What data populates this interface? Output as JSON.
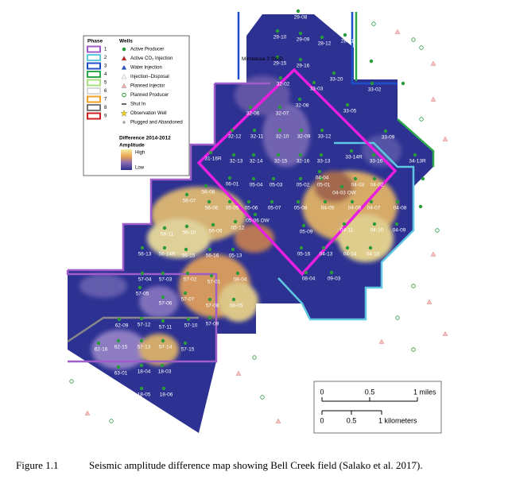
{
  "legend": {
    "phase_title": "Phase",
    "phases": [
      "1",
      "2",
      "3",
      "4",
      "5",
      "6",
      "7",
      "8",
      "9"
    ],
    "wells_title": "Wells",
    "wells": [
      "Active Producer",
      "Active CO₂ Injection",
      "Water Injection",
      "Injection–Disposal",
      "Planned Injector",
      "Planned Producer",
      "Shut In",
      "Observation Well",
      "Plugged and Abandoned"
    ],
    "difference_title": "Difference 2014-2012",
    "amplitude_title": "Amplitude",
    "high": "High",
    "low": "Low"
  },
  "map": {
    "swd": "Minnelusa 3 SWD",
    "wells": [
      "29-08",
      "29-10",
      "29-09",
      "28-12",
      "28-11",
      "28-15",
      "29-15",
      "29-16",
      "32-02",
      "33-20",
      "33-03",
      "33-02",
      "33-01",
      "32-06",
      "32-07",
      "32-08",
      "33-05",
      "32-12",
      "32-11",
      "32-10",
      "32-09",
      "33-12",
      "33-09",
      "31-16R",
      "32-13",
      "32-14",
      "32-15",
      "32-16",
      "33-13",
      "33-14R",
      "33-16",
      "34-13R",
      "06-01",
      "05-04",
      "05-03",
      "05-02",
      "05-01",
      "04-04",
      "04-03",
      "04-02",
      "03-04",
      "56-08",
      "56-07",
      "56-06",
      "05-05",
      "05-06",
      "05-07",
      "05-08",
      "04-05",
      "04-06",
      "04-07",
      "04-08",
      "03-05",
      "05-06 OW",
      "04-03 OW",
      "56-11",
      "56-10",
      "56-09",
      "05-12",
      "05-09",
      "04-11",
      "04-10",
      "04-09",
      "56-13",
      "56-14R",
      "56-15",
      "56-16",
      "05-13",
      "05-16",
      "04-13",
      "04-14",
      "04-15",
      "57-04",
      "57-03",
      "57-02",
      "57-01",
      "08-04",
      "08-04",
      "09-03",
      "57-05",
      "57-06",
      "57-07",
      "57-08",
      "08-05",
      "62-09",
      "57-12",
      "57-11",
      "57-10",
      "57-09",
      "62-16",
      "62-15",
      "57-13",
      "57-14",
      "57-15",
      "63-01",
      "18-04",
      "18-03",
      "18-05",
      "18-06"
    ]
  },
  "scale_bar": {
    "miles": [
      "0",
      "0.5",
      "1 miles"
    ],
    "kilometers": [
      "0",
      "0.5",
      "1 kilometers"
    ]
  },
  "caption": {
    "label": "Figure 1.1",
    "text": "Seismic amplitude difference map showing Bell Creek field (Salako et al. 2017)."
  }
}
